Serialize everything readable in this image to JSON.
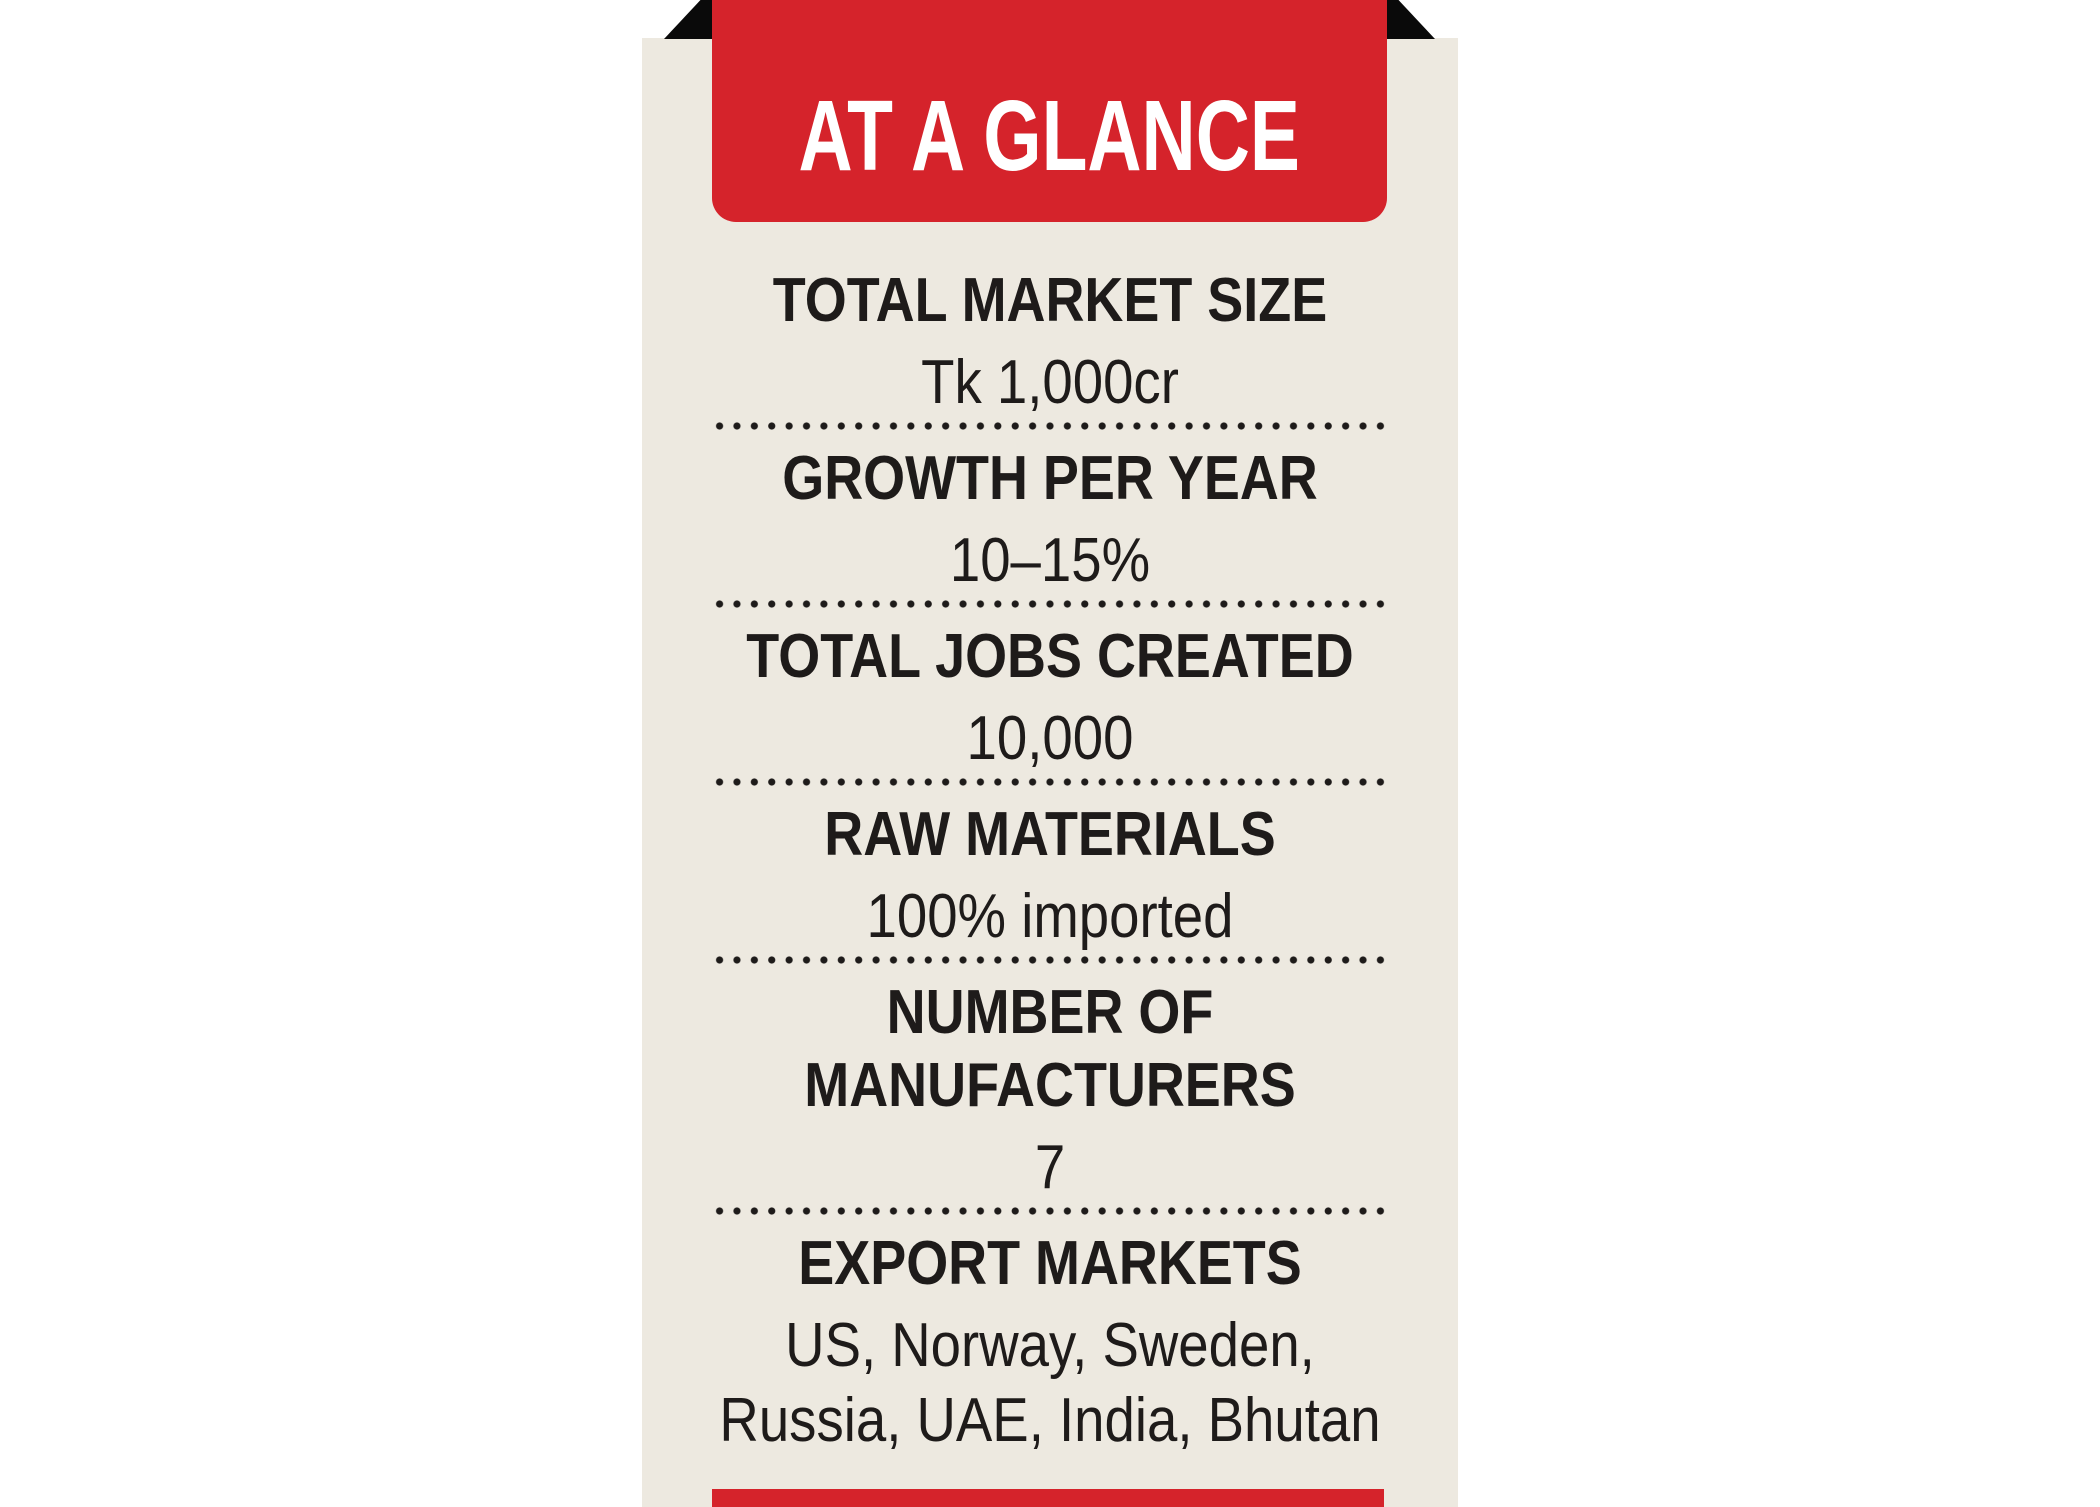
{
  "card": {
    "header": {
      "title": "AT A GLANCE"
    },
    "sections": [
      {
        "label": "TOTAL MARKET SIZE",
        "value": "Tk 1,000cr"
      },
      {
        "label": "GROWTH PER YEAR",
        "value": "10–15%"
      },
      {
        "label": "TOTAL JOBS CREATED",
        "value": "10,000"
      },
      {
        "label": "RAW MATERIALS",
        "value": "100% imported"
      },
      {
        "label": "NUMBER OF\nMANUFACTURERS",
        "value": "7"
      },
      {
        "label": "EXPORT MARKETS",
        "value": "US, Norway, Sweden,\nRussia, UAE, India, Bhutan"
      }
    ],
    "colors": {
      "accent_red": "#d5232b",
      "card_bg": "#ede9e0",
      "text_black": "#1e1b1a",
      "fold_black": "#0a0a0a",
      "page_bg": "#ffffff"
    }
  }
}
